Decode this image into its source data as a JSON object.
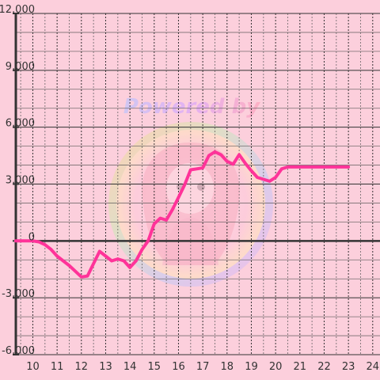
{
  "chart_data": {
    "type": "line",
    "title": "",
    "xlabel": "",
    "ylabel": "",
    "xlim": [
      9.3,
      24.3
    ],
    "ylim": [
      -6000,
      12000
    ],
    "x_ticks": [
      10,
      11,
      12,
      13,
      14,
      15,
      16,
      17,
      18,
      19,
      20,
      21,
      22,
      23,
      24
    ],
    "x_tick_labels": [
      "10",
      "11",
      "12",
      "13",
      "14",
      "15",
      "16",
      "17",
      "18",
      "19",
      "20",
      "21",
      "22",
      "23",
      "24"
    ],
    "y_ticks": [
      -6000,
      -3000,
      0,
      3000,
      6000,
      9000,
      12000
    ],
    "y_tick_labels": [
      "-6,000",
      "-3,000",
      "0",
      "3,000",
      "6,000",
      "9,000",
      "12,000"
    ],
    "grid": true,
    "legend": "none",
    "series": [
      {
        "color": "#ff3399",
        "x": [
          9.3,
          10.0,
          10.25,
          10.5,
          10.75,
          11.0,
          11.25,
          11.5,
          11.75,
          12.0,
          12.25,
          12.5,
          12.75,
          13.0,
          13.25,
          13.5,
          13.75,
          14.0,
          14.25,
          14.5,
          14.75,
          15.0,
          15.25,
          15.5,
          15.75,
          16.0,
          16.25,
          16.5,
          16.75,
          17.0,
          17.25,
          17.5,
          17.75,
          18.0,
          18.25,
          18.5,
          18.75,
          19.0,
          19.25,
          19.5,
          19.75,
          20.0,
          20.25,
          20.5,
          20.75,
          21.0,
          22.0,
          23.0
        ],
        "values": [
          0,
          0,
          -50,
          -200,
          -450,
          -800,
          -1050,
          -1300,
          -1600,
          -1900,
          -1850,
          -1200,
          -550,
          -800,
          -1050,
          -950,
          -1050,
          -1400,
          -1050,
          -450,
          0,
          900,
          1200,
          1100,
          1650,
          2300,
          2950,
          3750,
          3800,
          3850,
          4500,
          4700,
          4550,
          4200,
          4050,
          4550,
          4100,
          3700,
          3350,
          3250,
          3150,
          3350,
          3800,
          3900,
          3900,
          3900,
          3900,
          3900
        ]
      }
    ]
  },
  "watermark": {
    "text": "Powered by"
  }
}
